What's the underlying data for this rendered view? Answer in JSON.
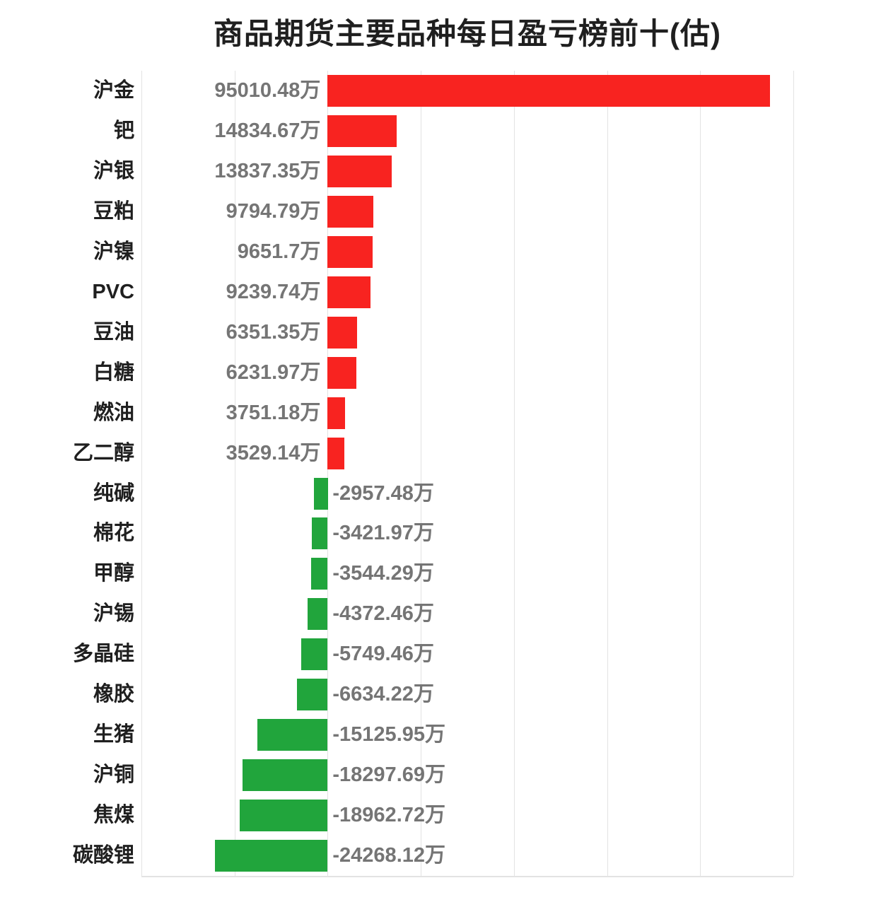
{
  "chart_data": {
    "type": "bar",
    "orientation": "horizontal",
    "title": "商品期货主要品种每日盈亏榜前十(估)",
    "xlabel": "",
    "ylabel": "",
    "unit": "万",
    "xlim": [
      -40000,
      100000
    ],
    "grid_interval": 20000,
    "grid_on": true,
    "legend": "none",
    "categories": [
      "沪金",
      "钯",
      "沪银",
      "豆粕",
      "沪镍",
      "PVC",
      "豆油",
      "白糖",
      "燃油",
      "乙二醇",
      "纯碱",
      "棉花",
      "甲醇",
      "沪锡",
      "多晶硅",
      "橡胶",
      "生猪",
      "沪铜",
      "焦煤",
      "碳酸锂"
    ],
    "values": [
      95010.48,
      14834.67,
      13837.35,
      9794.79,
      9651.7,
      9239.74,
      6351.35,
      6231.97,
      3751.18,
      3529.14,
      -2957.48,
      -3421.97,
      -3544.29,
      -4372.46,
      -5749.46,
      -6634.22,
      -15125.95,
      -18297.69,
      -18962.72,
      -24268.12
    ],
    "labels": [
      "95010.48万",
      "14834.67万",
      "13837.35万",
      "9794.79万",
      "9651.7万",
      "9239.74万",
      "6351.35万",
      "6231.97万",
      "3751.18万",
      "3529.14万",
      "-2957.48万",
      "-3421.97万",
      "-3544.29万",
      "-4372.46万",
      "-5749.46万",
      "-6634.22万",
      "-15125.95万",
      "-18297.69万",
      "-18962.72万",
      "-24268.12万"
    ],
    "colors": {
      "positive_bar": "#f82320",
      "negative_bar": "#21a53c",
      "value_label": "#757575",
      "category_label": "#1f1f1f",
      "gridline": "#e3e3e3"
    }
  }
}
